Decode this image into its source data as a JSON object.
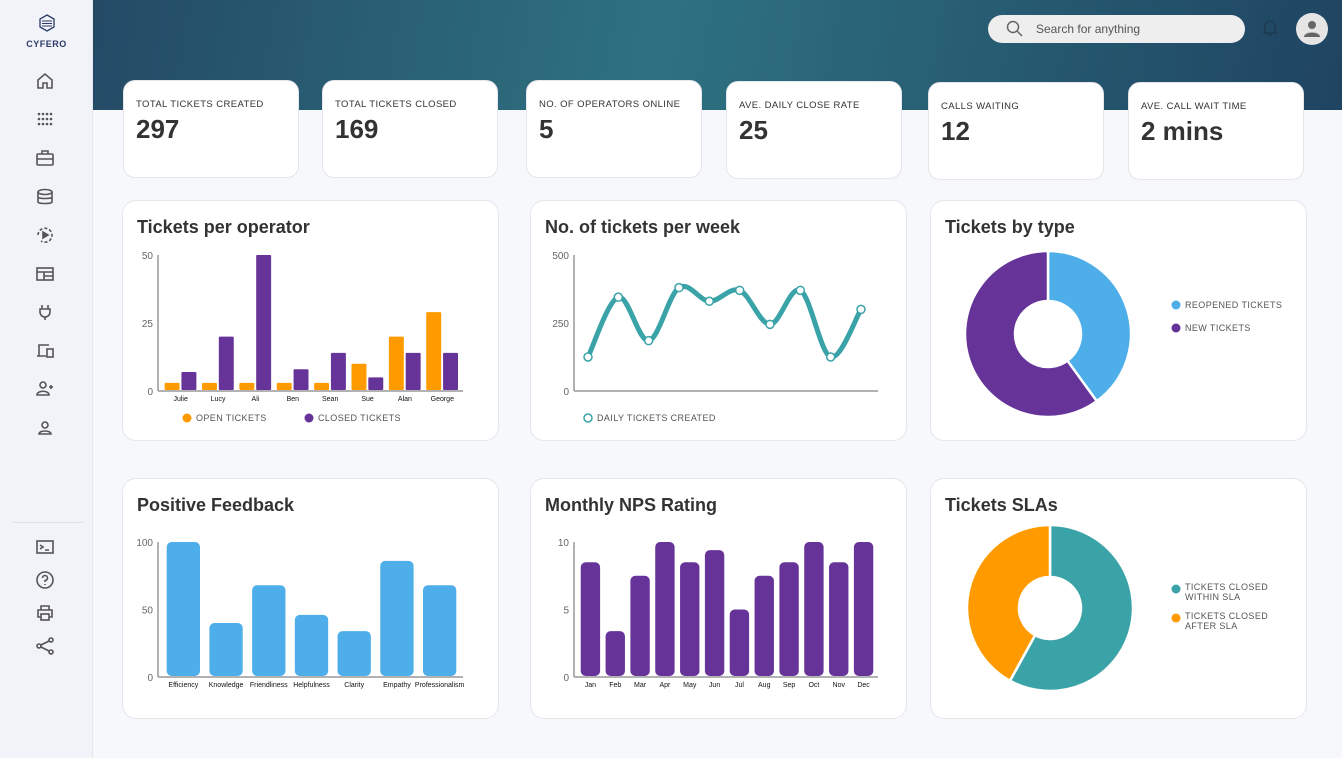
{
  "brand": {
    "name": "CYFERO"
  },
  "sidebar": {
    "items": [
      {
        "name": "home-icon"
      },
      {
        "name": "apps-grid-icon"
      },
      {
        "name": "briefcase-icon"
      },
      {
        "name": "database-icon"
      },
      {
        "name": "replay-icon"
      },
      {
        "name": "dashboard-layout-icon"
      },
      {
        "name": "plug-icon"
      },
      {
        "name": "devices-icon"
      },
      {
        "name": "add-user-icon"
      },
      {
        "name": "user-icon"
      }
    ],
    "bottom_items": [
      {
        "name": "terminal-icon"
      },
      {
        "name": "help-icon"
      },
      {
        "name": "print-icon"
      },
      {
        "name": "share-icon"
      }
    ]
  },
  "header": {
    "search_placeholder": "Search for anything"
  },
  "kpis": [
    {
      "label": "TOTAL TICKETS CREATED",
      "value": "297"
    },
    {
      "label": "TOTAL TICKETS CLOSED",
      "value": "169"
    },
    {
      "label": "NO. OF OPERATORS ONLINE",
      "value": "5"
    },
    {
      "label": "AVE. DAILY CLOSE RATE",
      "value": "25"
    },
    {
      "label": "CALLS WAITING",
      "value": "12"
    },
    {
      "label": "AVE. CALL WAIT TIME",
      "value": "2 mins"
    }
  ],
  "chart_data": [
    {
      "id": "operator",
      "type": "bar",
      "title": "Tickets per operator",
      "ylim": [
        0,
        50
      ],
      "yticks": [
        0,
        25,
        50
      ],
      "categories": [
        "Julie",
        "Lucy",
        "Ali",
        "Ben",
        "Sean",
        "Sue",
        "Alan",
        "George"
      ],
      "series": [
        {
          "name": "OPEN TICKETS",
          "color": "#ff9b00",
          "values": [
            3,
            3,
            3,
            3,
            3,
            10,
            20,
            29
          ]
        },
        {
          "name": "CLOSED TICKETS",
          "color": "#663399",
          "values": [
            7,
            20,
            50,
            8,
            14,
            5,
            14,
            14
          ]
        }
      ],
      "legend": "bottom"
    },
    {
      "id": "weekly",
      "type": "line",
      "title": "No. of tickets per week",
      "ylim": [
        0,
        500
      ],
      "yticks": [
        0,
        250,
        500
      ],
      "series": [
        {
          "name": "DAILY TICKETS CREATED",
          "color": "#3aa3a8",
          "values": [
            125,
            345,
            185,
            380,
            330,
            370,
            245,
            370,
            125,
            300
          ]
        }
      ],
      "legend": "bottom"
    },
    {
      "id": "type",
      "type": "pie",
      "title": "Tickets by type",
      "slices": [
        {
          "label": "REOPENED TICKETS",
          "value": 40,
          "color": "#4daee9"
        },
        {
          "label": "NEW TICKETS",
          "value": 60,
          "color": "#663399"
        }
      ],
      "legend": "right"
    },
    {
      "id": "feedback",
      "type": "bar",
      "title": "Positive Feedback",
      "ylim": [
        0,
        100
      ],
      "yticks": [
        0,
        50,
        100
      ],
      "categories": [
        "Efficiency",
        "Knowledge",
        "Friendliness",
        "Helpfulness",
        "Clarity",
        "Empathy",
        "Professionalism"
      ],
      "series": [
        {
          "color": "#4daee9",
          "values": [
            100,
            40,
            68,
            46,
            34,
            86,
            68
          ]
        }
      ]
    },
    {
      "id": "nps",
      "type": "bar",
      "title": "Monthly NPS Rating",
      "ylim": [
        0,
        10
      ],
      "yticks": [
        0,
        5,
        10
      ],
      "categories": [
        "Jan",
        "Feb",
        "Mar",
        "Apr",
        "May",
        "Jun",
        "Jul",
        "Aug",
        "Sep",
        "Oct",
        "Nov",
        "Dec"
      ],
      "series": [
        {
          "color": "#663399",
          "values": [
            8.5,
            3.4,
            7.5,
            10,
            8.5,
            9.4,
            5,
            7.5,
            8.5,
            10,
            8.5,
            10
          ]
        }
      ]
    },
    {
      "id": "sla",
      "type": "pie",
      "title": "Tickets SLAs",
      "slices": [
        {
          "label": "TICKETS CLOSED WITHIN SLA",
          "value": 58,
          "color": "#3aa3a8"
        },
        {
          "label": "TICKETS CLOSED AFTER SLA",
          "value": 42,
          "color": "#ff9b00"
        }
      ],
      "legend": "right"
    }
  ]
}
